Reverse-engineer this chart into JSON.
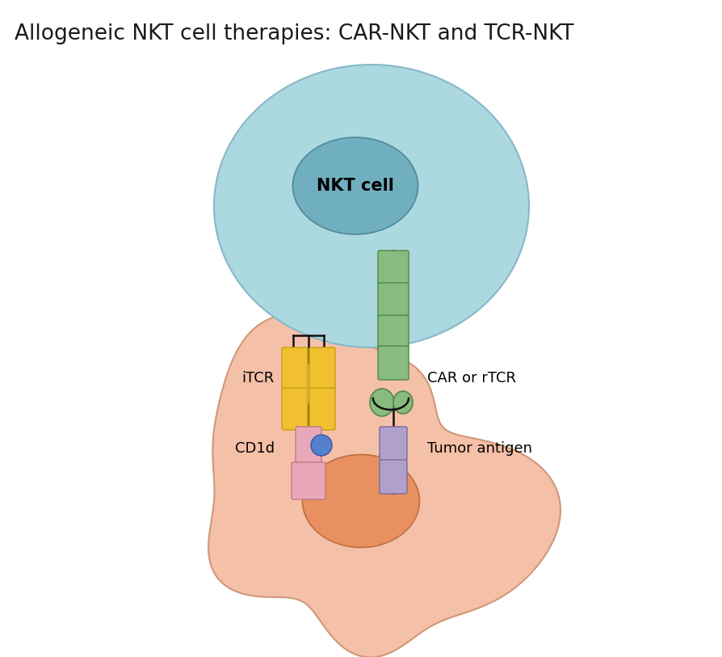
{
  "title": "Allogeneic NKT cell therapies: CAR-NKT and TCR-NKT",
  "title_fontsize": 19,
  "title_color": "#1a1a1a",
  "bg_color": "#ffffff",
  "nkt_cell_color": "#acd8e0",
  "nkt_cell_edge": "#88b8c8",
  "nkt_nucleus_color": "#70afc0",
  "nkt_nucleus_edge": "#508898",
  "nkt_label": "NKT cell",
  "nkt_label_fontsize": 15,
  "tumor_cell_color": "#f5c0a8",
  "tumor_cell_edge": "#d09878",
  "tumor_nucleus_color": "#e89060",
  "tumor_nucleus_edge": "#c07040",
  "itcr_color": "#f0c030",
  "itcr_edge": "#c8a010",
  "itcr_label": "iTCR",
  "cd1d_color": "#e8a8b8",
  "cd1d_edge": "#c07888",
  "cd1d_label": "CD1d",
  "cd1d_dot_color": "#5580cc",
  "cd1d_dot_edge": "#3355aa",
  "car_color": "#88bb80",
  "car_edge": "#508848",
  "car_label": "CAR or rTCR",
  "tumor_antigen_color": "#b0a0cc",
  "tumor_antigen_edge": "#806898",
  "tumor_antigen_label": "Tumor antigen",
  "line_color": "#111111",
  "label_fontsize": 13
}
